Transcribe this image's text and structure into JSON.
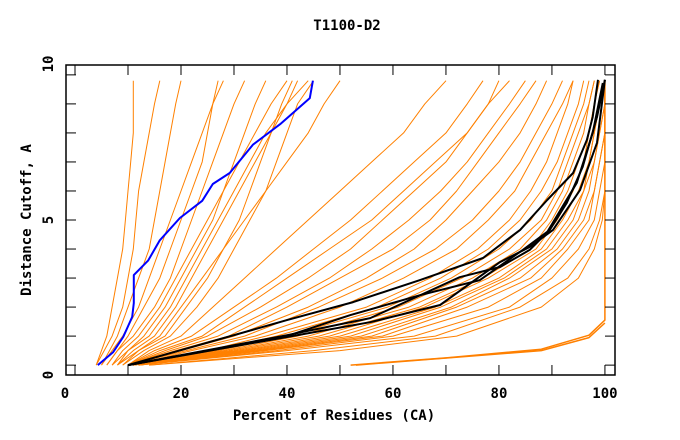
{
  "chart_data": {
    "type": "line",
    "title": "T1100-D2",
    "xlabel": "Percent of Residues (CA)",
    "ylabel": "Distance Cutoff, A",
    "xlim": [
      -1.7,
      101.9
    ],
    "ylim": [
      -0.34,
      10.34
    ],
    "xticks": [
      0,
      20,
      40,
      60,
      80,
      100
    ],
    "yticks": [
      0,
      5,
      10
    ],
    "grid": false,
    "colors": {
      "orange": "#ff8000",
      "black": "#000000",
      "blue": "#0000ff"
    },
    "y_levels": [
      0,
      0.5,
      1,
      2,
      3,
      4,
      5,
      6,
      7,
      8,
      9,
      9.8
    ],
    "orange_curves_x_at_levels": [
      [
        4,
        5,
        6,
        7,
        8,
        9,
        9.5,
        10,
        10.5,
        11,
        11,
        11
      ],
      [
        4,
        5.5,
        7,
        9,
        10,
        11,
        11.5,
        12,
        13,
        14,
        15,
        16
      ],
      [
        5,
        6.5,
        8,
        10,
        12,
        14,
        15,
        16,
        17,
        18,
        19,
        20
      ],
      [
        5,
        7,
        9,
        12,
        14,
        16,
        18,
        20,
        22,
        24,
        26,
        28
      ],
      [
        6,
        8,
        10,
        13,
        16,
        18,
        20,
        22,
        24,
        25,
        26,
        27
      ],
      [
        6,
        8,
        11,
        15,
        18,
        20,
        22,
        24,
        26,
        28,
        30,
        32
      ],
      [
        7,
        9,
        12,
        16,
        19,
        22,
        25,
        28,
        31,
        34,
        37,
        40
      ],
      [
        7,
        10,
        13,
        17,
        20,
        23,
        26,
        28,
        30,
        32,
        34,
        36
      ],
      [
        8,
        10,
        14,
        18,
        21,
        24,
        27,
        30,
        33,
        36,
        40,
        42
      ],
      [
        8,
        11,
        15,
        19,
        22,
        25,
        28,
        31,
        34,
        37,
        40,
        44
      ],
      [
        8,
        12,
        16,
        20,
        24,
        28,
        32,
        36,
        40,
        44,
        47,
        50
      ],
      [
        9,
        12,
        17,
        21,
        25,
        28,
        31,
        33,
        35,
        37,
        39,
        41
      ],
      [
        9,
        13,
        18,
        23,
        27,
        30,
        33,
        36,
        38,
        40,
        42,
        45
      ],
      [
        10,
        14,
        20,
        26,
        32,
        38,
        44,
        50,
        56,
        62,
        66,
        70
      ],
      [
        10,
        15,
        22,
        30,
        38,
        45,
        52,
        58,
        64,
        70,
        74,
        77
      ],
      [
        10,
        16,
        24,
        32,
        40,
        48,
        56,
        62,
        68,
        74,
        78,
        80
      ],
      [
        10,
        17,
        25,
        35,
        44,
        52,
        58,
        64,
        70,
        74,
        78,
        82
      ],
      [
        10,
        18,
        27,
        38,
        48,
        56,
        63,
        69,
        74,
        78,
        82,
        85
      ],
      [
        10,
        19,
        29,
        40,
        50,
        60,
        67,
        72,
        76,
        80,
        84,
        87
      ],
      [
        10,
        20,
        30,
        44,
        55,
        64,
        70,
        75,
        80,
        84,
        87,
        89
      ],
      [
        10,
        21,
        32,
        46,
        58,
        68,
        75,
        80,
        84,
        87,
        90,
        92
      ],
      [
        11,
        22,
        34,
        50,
        62,
        72,
        78,
        83,
        86,
        89,
        92,
        94
      ],
      [
        10,
        25,
        36,
        55,
        67,
        76,
        82,
        86,
        89,
        91,
        93,
        94
      ],
      [
        10,
        26,
        38,
        57,
        69,
        78,
        84,
        88,
        91,
        93,
        95,
        96
      ],
      [
        10,
        27,
        40,
        59,
        71,
        80,
        86,
        90,
        92,
        94,
        96,
        97
      ],
      [
        11,
        28,
        42,
        61,
        73,
        82,
        88,
        91,
        93,
        95,
        97,
        98
      ],
      [
        11,
        29,
        44,
        63,
        75,
        84,
        89,
        92,
        94,
        96,
        97,
        98
      ],
      [
        11,
        30,
        46,
        65,
        77,
        86,
        90,
        93,
        95,
        97,
        98,
        99
      ],
      [
        11,
        31,
        48,
        66,
        78,
        87,
        91,
        94,
        96,
        97,
        98,
        99
      ],
      [
        11,
        32,
        50,
        68,
        80,
        88,
        92,
        95,
        97,
        98,
        99,
        100
      ],
      [
        12,
        33,
        52,
        69,
        81,
        89,
        93,
        96,
        97,
        98,
        99,
        100
      ],
      [
        12,
        34,
        54,
        71,
        82,
        90,
        94,
        96,
        98,
        99,
        100,
        100
      ],
      [
        12,
        35,
        56,
        72,
        84,
        91,
        95,
        97,
        98,
        99,
        100,
        100
      ],
      [
        12,
        36,
        58,
        74,
        86,
        92,
        96,
        98,
        99,
        100,
        100,
        100
      ],
      [
        12,
        38,
        60,
        78,
        88,
        93,
        97,
        98,
        99,
        100,
        100,
        100
      ],
      [
        12,
        40,
        64,
        82,
        90,
        95,
        98,
        99,
        100,
        100,
        100,
        100
      ],
      [
        14,
        45,
        68,
        84,
        93,
        97,
        99,
        100,
        100,
        100,
        100,
        100
      ],
      [
        14,
        50,
        72,
        88,
        95,
        98,
        99.5,
        100,
        100,
        100,
        100,
        100
      ]
    ],
    "orange_curves_points": [
      [
        [
          52,
          0
        ],
        [
          70,
          0.25
        ],
        [
          88,
          0.55
        ],
        [
          97,
          1.03
        ],
        [
          100,
          1.55
        ],
        [
          100,
          9.8
        ]
      ],
      [
        [
          53,
          0
        ],
        [
          88,
          0.5
        ],
        [
          97,
          0.95
        ],
        [
          100,
          1.45
        ]
      ]
    ],
    "black_curves": [
      [
        [
          10,
          0
        ],
        [
          40,
          1.55
        ],
        [
          52.5,
          2.17
        ],
        [
          65.1,
          2.93
        ],
        [
          77,
          3.69
        ],
        [
          84,
          4.66
        ],
        [
          89.1,
          5.69
        ],
        [
          94,
          6.62
        ],
        [
          96.6,
          7.76
        ],
        [
          97.7,
          8.55
        ],
        [
          98.7,
          9.83
        ]
      ],
      [
        [
          10,
          0
        ],
        [
          40,
          0.97
        ],
        [
          55.7,
          1.48
        ],
        [
          68.9,
          2.07
        ],
        [
          80.2,
          3.55
        ],
        [
          85.8,
          4.07
        ],
        [
          90.2,
          4.66
        ],
        [
          95.3,
          6.03
        ],
        [
          98.5,
          7.66
        ],
        [
          100,
          9.83
        ]
      ],
      [
        [
          10,
          0
        ],
        [
          40,
          1.03
        ],
        [
          55.7,
          1.62
        ],
        [
          72.6,
          3.03
        ],
        [
          80.2,
          3.38
        ],
        [
          85.8,
          3.97
        ],
        [
          89,
          4.55
        ],
        [
          94.7,
          6.28
        ],
        [
          97.7,
          8.0
        ],
        [
          99.6,
          9.72
        ]
      ],
      [
        [
          10,
          0
        ],
        [
          40,
          1.0
        ],
        [
          51.9,
          1.72
        ],
        [
          65.1,
          2.41
        ],
        [
          76.4,
          2.93
        ],
        [
          84.5,
          3.97
        ],
        [
          89.6,
          4.66
        ],
        [
          92.8,
          5.59
        ],
        [
          95.8,
          6.83
        ],
        [
          98.5,
          8.55
        ],
        [
          100,
          9.83
        ]
      ]
    ],
    "blue_curve": [
      [
        4.3,
        0
      ],
      [
        7.2,
        0.45
      ],
      [
        9.1,
        0.97
      ],
      [
        10.8,
        1.66
      ],
      [
        11.1,
        2.14
      ],
      [
        11.1,
        3.1
      ],
      [
        13.8,
        3.6
      ],
      [
        16.0,
        4.3
      ],
      [
        19.8,
        5.07
      ],
      [
        24,
        5.66
      ],
      [
        26,
        6.24
      ],
      [
        29.2,
        6.62
      ],
      [
        33.6,
        7.6
      ],
      [
        38.7,
        8.3
      ],
      [
        44.3,
        9.2
      ],
      [
        44.9,
        9.8
      ]
    ]
  }
}
